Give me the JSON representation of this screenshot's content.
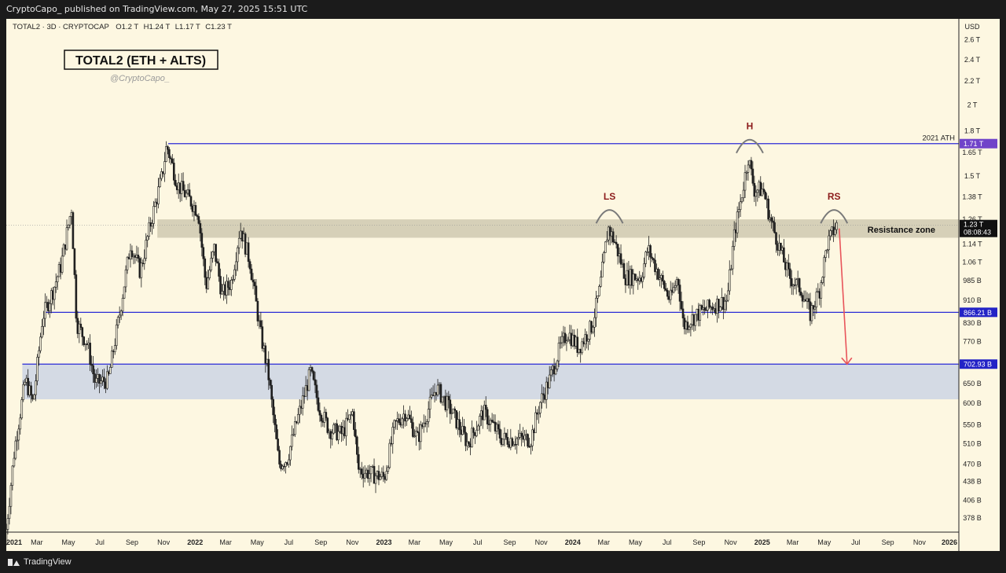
{
  "header": {
    "published": "CryptoCapo_ published on TradingView.com, May 27, 2025 15:51 UTC"
  },
  "footer": {
    "brand": "TradingView",
    "logo_icon": "tradingview-logo-icon"
  },
  "legend": {
    "symbol": "TOTAL2 · 3D · CRYPTOCAP",
    "open": "O1.2 T",
    "high": "H1.24 T",
    "low": "L1.17 T",
    "close": "C1.23 T"
  },
  "chart_data": {
    "type": "candlestick",
    "title": "TOTAL2 (ETH + ALTS)",
    "subtitle": "@CryptoCapo_",
    "currency": "USD",
    "scale": "log",
    "ylim": [
      350000000000,
      2800000000000
    ],
    "y_ticks": [
      {
        "label": "2.6 T",
        "value": 2600000000000.0
      },
      {
        "label": "2.4 T",
        "value": 2400000000000.0
      },
      {
        "label": "2.2 T",
        "value": 2200000000000.0
      },
      {
        "label": "2 T",
        "value": 2000000000000.0
      },
      {
        "label": "1.8 T",
        "value": 1800000000000.0
      },
      {
        "label": "1.65 T",
        "value": 1650000000000.0
      },
      {
        "label": "1.5 T",
        "value": 1500000000000.0
      },
      {
        "label": "1.38 T",
        "value": 1380000000000.0
      },
      {
        "label": "1.26 T",
        "value": 1260000000000.0
      },
      {
        "label": "1.14 T",
        "value": 1140000000000.0
      },
      {
        "label": "1.06 T",
        "value": 1060000000000.0
      },
      {
        "label": "985 B",
        "value": 985000000000.0
      },
      {
        "label": "910 B",
        "value": 910000000000.0
      },
      {
        "label": "830 B",
        "value": 830000000000.0
      },
      {
        "label": "770 B",
        "value": 770000000000.0
      },
      {
        "label": "650 B",
        "value": 650000000000.0
      },
      {
        "label": "600 B",
        "value": 600000000000.0
      },
      {
        "label": "550 B",
        "value": 550000000000.0
      },
      {
        "label": "510 B",
        "value": 510000000000.0
      },
      {
        "label": "470 B",
        "value": 470000000000.0
      },
      {
        "label": "438 B",
        "value": 438000000000.0
      },
      {
        "label": "406 B",
        "value": 406000000000.0
      },
      {
        "label": "378 B",
        "value": 378000000000.0
      }
    ],
    "x_range": [
      "2021-01-01",
      "2026-01-01"
    ],
    "x_ticks": [
      {
        "label": "2021",
        "date": "2021-01-01"
      },
      {
        "label": "Mar",
        "date": "2021-03-01"
      },
      {
        "label": "May",
        "date": "2021-05-01"
      },
      {
        "label": "Jul",
        "date": "2021-07-01"
      },
      {
        "label": "Sep",
        "date": "2021-09-01"
      },
      {
        "label": "Nov",
        "date": "2021-11-01"
      },
      {
        "label": "2022",
        "date": "2022-01-01"
      },
      {
        "label": "Mar",
        "date": "2022-03-01"
      },
      {
        "label": "May",
        "date": "2022-05-01"
      },
      {
        "label": "Jul",
        "date": "2022-07-01"
      },
      {
        "label": "Sep",
        "date": "2022-09-01"
      },
      {
        "label": "Nov",
        "date": "2022-11-01"
      },
      {
        "label": "2023",
        "date": "2023-01-01"
      },
      {
        "label": "Mar",
        "date": "2023-03-01"
      },
      {
        "label": "May",
        "date": "2023-05-01"
      },
      {
        "label": "Jul",
        "date": "2023-07-01"
      },
      {
        "label": "Sep",
        "date": "2023-09-01"
      },
      {
        "label": "Nov",
        "date": "2023-11-01"
      },
      {
        "label": "2024",
        "date": "2024-01-01"
      },
      {
        "label": "Mar",
        "date": "2024-03-01"
      },
      {
        "label": "May",
        "date": "2024-05-01"
      },
      {
        "label": "Jul",
        "date": "2024-07-01"
      },
      {
        "label": "Sep",
        "date": "2024-09-01"
      },
      {
        "label": "Nov",
        "date": "2024-11-01"
      },
      {
        "label": "2025",
        "date": "2025-01-01"
      },
      {
        "label": "Mar",
        "date": "2025-03-01"
      },
      {
        "label": "May",
        "date": "2025-05-01"
      },
      {
        "label": "Jul",
        "date": "2025-07-01"
      },
      {
        "label": "Sep",
        "date": "2025-09-01"
      },
      {
        "label": "Nov",
        "date": "2025-11-01"
      },
      {
        "label": "2026",
        "date": "2026-01-01"
      }
    ],
    "price_path": [
      [
        "2021-01-01",
        340000000000.0
      ],
      [
        "2021-01-20",
        500000000000.0
      ],
      [
        "2021-02-10",
        660000000000.0
      ],
      [
        "2021-02-25",
        600000000000.0
      ],
      [
        "2021-03-15",
        850000000000.0
      ],
      [
        "2021-04-05",
        950000000000.0
      ],
      [
        "2021-04-20",
        1050000000000.0
      ],
      [
        "2021-05-10",
        1320000000000.0
      ],
      [
        "2021-05-20",
        830000000000.0
      ],
      [
        "2021-06-10",
        760000000000.0
      ],
      [
        "2021-06-25",
        650000000000.0
      ],
      [
        "2021-07-20",
        660000000000.0
      ],
      [
        "2021-08-10",
        850000000000.0
      ],
      [
        "2021-09-01",
        1140000000000.0
      ],
      [
        "2021-09-20",
        1020000000000.0
      ],
      [
        "2021-10-10",
        1240000000000.0
      ],
      [
        "2021-11-01",
        1500000000000.0
      ],
      [
        "2021-11-10",
        1700000000000.0
      ],
      [
        "2021-12-01",
        1450000000000.0
      ],
      [
        "2021-12-20",
        1380000000000.0
      ],
      [
        "2022-01-10",
        1300000000000.0
      ],
      [
        "2022-01-25",
        960000000000.0
      ],
      [
        "2022-02-10",
        1120000000000.0
      ],
      [
        "2022-02-25",
        930000000000.0
      ],
      [
        "2022-03-15",
        980000000000.0
      ],
      [
        "2022-04-01",
        1220000000000.0
      ],
      [
        "2022-04-20",
        1060000000000.0
      ],
      [
        "2022-05-10",
        800000000000.0
      ],
      [
        "2022-05-25",
        680000000000.0
      ],
      [
        "2022-06-15",
        470000000000.0
      ],
      [
        "2022-07-01",
        480000000000.0
      ],
      [
        "2022-07-20",
        560000000000.0
      ],
      [
        "2022-08-15",
        680000000000.0
      ],
      [
        "2022-09-01",
        590000000000.0
      ],
      [
        "2022-09-20",
        540000000000.0
      ],
      [
        "2022-10-15",
        530000000000.0
      ],
      [
        "2022-11-05",
        580000000000.0
      ],
      [
        "2022-11-15",
        460000000000.0
      ],
      [
        "2022-12-15",
        450000000000.0
      ],
      [
        "2023-01-05",
        445000000000.0
      ],
      [
        "2023-01-25",
        550000000000.0
      ],
      [
        "2023-02-15",
        580000000000.0
      ],
      [
        "2023-03-10",
        520000000000.0
      ],
      [
        "2023-04-15",
        640000000000.0
      ],
      [
        "2023-05-15",
        580000000000.0
      ],
      [
        "2023-06-15",
        510000000000.0
      ],
      [
        "2023-07-15",
        580000000000.0
      ],
      [
        "2023-08-20",
        520000000000.0
      ],
      [
        "2023-09-15",
        520000000000.0
      ],
      [
        "2023-10-15",
        520000000000.0
      ],
      [
        "2023-11-01",
        600000000000.0
      ],
      [
        "2023-11-20",
        660000000000.0
      ],
      [
        "2023-12-10",
        750000000000.0
      ],
      [
        "2023-12-25",
        800000000000.0
      ],
      [
        "2024-01-15",
        750000000000.0
      ],
      [
        "2024-02-10",
        820000000000.0
      ],
      [
        "2024-02-25",
        950000000000.0
      ],
      [
        "2024-03-12",
        1220000000000.0
      ],
      [
        "2024-03-25",
        1150000000000.0
      ],
      [
        "2024-04-15",
        1000000000000.0
      ],
      [
        "2024-05-15",
        1000000000000.0
      ],
      [
        "2024-05-28",
        1120000000000.0
      ],
      [
        "2024-06-20",
        1000000000000.0
      ],
      [
        "2024-07-10",
        910000000000.0
      ],
      [
        "2024-07-25",
        1000000000000.0
      ],
      [
        "2024-08-05",
        820000000000.0
      ],
      [
        "2024-09-01",
        860000000000.0
      ],
      [
        "2024-10-01",
        890000000000.0
      ],
      [
        "2024-10-28",
        910000000000.0
      ],
      [
        "2024-11-12",
        1200000000000.0
      ],
      [
        "2024-11-25",
        1380000000000.0
      ],
      [
        "2024-12-08",
        1620000000000.0
      ],
      [
        "2024-12-20",
        1420000000000.0
      ],
      [
        "2025-01-06",
        1420000000000.0
      ],
      [
        "2025-01-20",
        1260000000000.0
      ],
      [
        "2025-02-03",
        1150000000000.0
      ],
      [
        "2025-02-25",
        1000000000000.0
      ],
      [
        "2025-03-20",
        950000000000.0
      ],
      [
        "2025-04-07",
        860000000000.0
      ],
      [
        "2025-04-25",
        950000000000.0
      ],
      [
        "2025-05-10",
        1140000000000.0
      ],
      [
        "2025-05-27",
        1230000000000.0
      ]
    ],
    "annotations": {
      "ath_label": "2021 ATH",
      "ath_value": 1710000000000.0,
      "ath_tag": "1.71 T",
      "support_value": 866210000000.0,
      "support_tag": "866.21 B",
      "target_value": 702930000000.0,
      "target_tag": "702.93 B",
      "last_price_tag": "1.23 T",
      "countdown": "08:08:43",
      "resistance_zone_label": "Resistance zone",
      "resistance_zone": [
        1170000000000.0,
        1260000000000.0
      ],
      "demand_zone": [
        610000000000.0,
        702930000000.0
      ],
      "pattern_labels": [
        "LS",
        "H",
        "RS"
      ],
      "pattern_dates": [
        "2024-03-12",
        "2024-12-08",
        "2025-05-20"
      ]
    },
    "colors": {
      "background": "#fdf7e1",
      "candles": "#1f1f1f",
      "levels": "#2b2bd6",
      "ath_tag": "#7044c9",
      "level_tag": "#2323c6",
      "resistance_zone": "#d6d0b8",
      "demand_zone": "#d4dae4",
      "arrow": "#e8545a",
      "pattern_label": "#8b1a1a"
    }
  }
}
